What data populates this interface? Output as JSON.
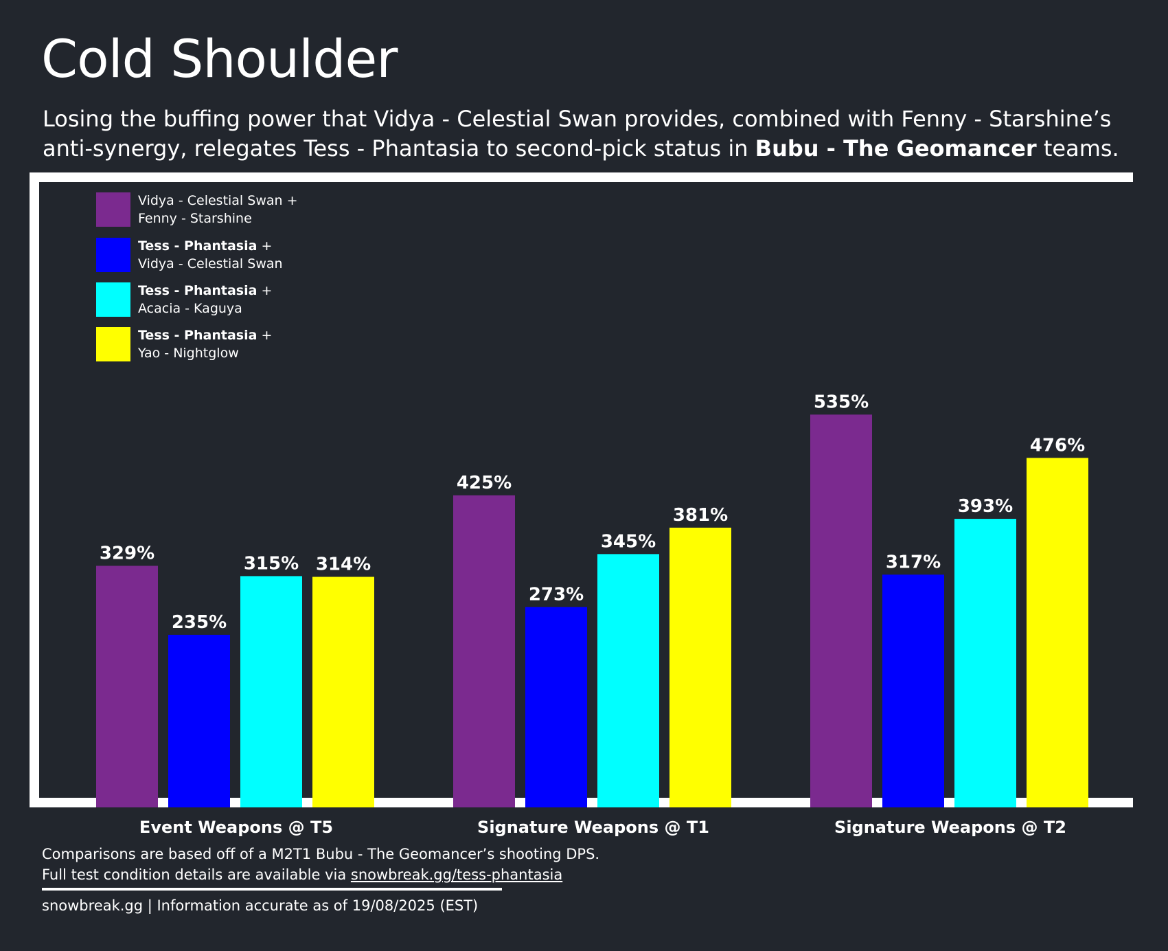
{
  "title": "Cold Shoulder",
  "subtitle": {
    "part1": "Losing the buffing power that Vidya - Celestial Swan provides, combined with Fenny - Starshine’s anti-synergy, relegates Tess - Phantasia to second-pick status in ",
    "bold": "Bubu - The Geomancer",
    "part2": " teams."
  },
  "legend": [
    {
      "line1_bold": "",
      "line1": "Vidya - Celestial Swan +",
      "line2": "Fenny - Starshine",
      "color": "#7b2a8f"
    },
    {
      "line1_bold": "Tess - Phantasia",
      "line1": " +",
      "line2": "Vidya - Celestial Swan",
      "color": "#0000ff"
    },
    {
      "line1_bold": "Tess - Phantasia",
      "line1": " +",
      "line2": "Acacia - Kaguya",
      "color": "#00ffff"
    },
    {
      "line1_bold": "Tess - Phantasia",
      "line1": " +",
      "line2": "Yao - Nightglow",
      "color": "#ffff00"
    }
  ],
  "chart_data": {
    "type": "bar",
    "categories": [
      "Event Weapons @ T5",
      "Signature Weapons @ T1",
      "Signature Weapons @ T2"
    ],
    "series": [
      {
        "name": "Vidya - Celestial Swan + Fenny - Starshine",
        "values": [
          329,
          425,
          535
        ],
        "labels": [
          "329%",
          "425%",
          "535%"
        ],
        "color": "#7b2a8f"
      },
      {
        "name": "Tess - Phantasia + Vidya - Celestial Swan",
        "values": [
          235,
          273,
          317
        ],
        "labels": [
          "235%",
          "273%",
          "317%"
        ],
        "color": "#0000ff"
      },
      {
        "name": "Tess - Phantasia + Acacia - Kaguya",
        "values": [
          315,
          345,
          393
        ],
        "labels": [
          "315%",
          "345%",
          "393%"
        ],
        "color": "#00ffff"
      },
      {
        "name": "Tess - Phantasia + Yao - Nightglow",
        "values": [
          314,
          381,
          476
        ],
        "labels": [
          "314%",
          "381%",
          "476%"
        ],
        "color": "#ffff00"
      }
    ],
    "unit": "%",
    "ylim": [
      0,
      570
    ],
    "grid": false,
    "legend_position": "top-left"
  },
  "footer": {
    "note_line1": "Comparisons are based off of a M2T1 Bubu - The Geomancer’s shooting DPS.",
    "note_line2_prefix": "Full test condition details are available via ",
    "note_link": "snowbreak.gg/tess-phantasia",
    "credit": "snowbreak.gg | Information accurate as of 19/08/2025 (EST)"
  }
}
